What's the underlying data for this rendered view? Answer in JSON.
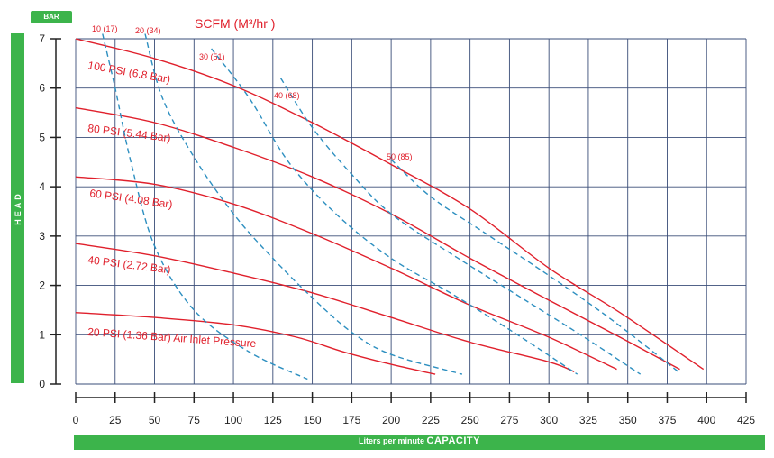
{
  "y_unit_badge": "BAR",
  "y_axis_label": "HEAD",
  "x_axis_label_prefix": "Liters per minute",
  "x_axis_label_strong": "CAPACITY",
  "airflow_title": "SCFM (M³/hr )",
  "colors": {
    "grid": "#3a4d78",
    "pressure": "#e0202c",
    "airflow": "#2d8fc0",
    "accent": "#3cb44b"
  },
  "chart_data": {
    "type": "line",
    "xlim": [
      0,
      425
    ],
    "ylim": [
      0,
      7
    ],
    "x_ticks": [
      0,
      25,
      50,
      75,
      100,
      125,
      150,
      175,
      200,
      225,
      250,
      275,
      300,
      325,
      350,
      375,
      400,
      425
    ],
    "y_ticks": [
      0,
      1,
      2,
      3,
      4,
      5,
      6,
      7
    ],
    "grid": true,
    "series": [
      {
        "name": "100 PSI (6.8 Bar)",
        "style": "solid",
        "color": "#e0202c",
        "points": [
          [
            0,
            7.0
          ],
          [
            50,
            6.6
          ],
          [
            100,
            6.05
          ],
          [
            150,
            5.3
          ],
          [
            200,
            4.45
          ],
          [
            250,
            3.55
          ],
          [
            300,
            2.35
          ],
          [
            345,
            1.45
          ],
          [
            398,
            0.3
          ]
        ]
      },
      {
        "name": "80 PSI (5.44 Bar)",
        "style": "solid",
        "color": "#e0202c",
        "points": [
          [
            0,
            5.6
          ],
          [
            50,
            5.3
          ],
          [
            100,
            4.8
          ],
          [
            150,
            4.2
          ],
          [
            200,
            3.45
          ],
          [
            250,
            2.55
          ],
          [
            300,
            1.7
          ],
          [
            345,
            0.95
          ],
          [
            383,
            0.3
          ]
        ]
      },
      {
        "name": "60 PSI (4.08 Bar)",
        "style": "solid",
        "color": "#e0202c",
        "points": [
          [
            0,
            4.2
          ],
          [
            50,
            4.05
          ],
          [
            100,
            3.65
          ],
          [
            150,
            3.05
          ],
          [
            200,
            2.35
          ],
          [
            250,
            1.6
          ],
          [
            300,
            0.95
          ],
          [
            343,
            0.3
          ]
        ]
      },
      {
        "name": "40 PSI (2.72 Bar)",
        "style": "solid",
        "color": "#e0202c",
        "points": [
          [
            0,
            2.85
          ],
          [
            50,
            2.6
          ],
          [
            100,
            2.25
          ],
          [
            150,
            1.85
          ],
          [
            200,
            1.35
          ],
          [
            250,
            0.85
          ],
          [
            300,
            0.45
          ],
          [
            316,
            0.25
          ]
        ]
      },
      {
        "name": "20 PSI (1.36 Bar) Air Inlet Pressure",
        "style": "solid",
        "color": "#e0202c",
        "points": [
          [
            0,
            1.45
          ],
          [
            50,
            1.35
          ],
          [
            100,
            1.2
          ],
          [
            140,
            0.95
          ],
          [
            170,
            0.65
          ],
          [
            200,
            0.4
          ],
          [
            228,
            0.2
          ]
        ]
      },
      {
        "name": "10 (17)",
        "style": "dashed",
        "color": "#2d8fc0",
        "points": [
          [
            17,
            7.1
          ],
          [
            25,
            6.0
          ],
          [
            35,
            4.5
          ],
          [
            50,
            2.8
          ],
          [
            75,
            1.5
          ],
          [
            110,
            0.65
          ],
          [
            147,
            0.1
          ]
        ]
      },
      {
        "name": "20 (34)",
        "style": "dashed",
        "color": "#2d8fc0",
        "points": [
          [
            44,
            7.1
          ],
          [
            55,
            5.8
          ],
          [
            75,
            4.6
          ],
          [
            100,
            3.45
          ],
          [
            125,
            2.55
          ],
          [
            150,
            1.75
          ],
          [
            175,
            1.05
          ],
          [
            200,
            0.6
          ],
          [
            245,
            0.2
          ]
        ]
      },
      {
        "name": "30 (51)",
        "style": "dashed",
        "color": "#2d8fc0",
        "points": [
          [
            86,
            6.8
          ],
          [
            110,
            5.8
          ],
          [
            135,
            4.5
          ],
          [
            165,
            3.45
          ],
          [
            200,
            2.55
          ],
          [
            240,
            1.8
          ],
          [
            280,
            1.0
          ],
          [
            318,
            0.2
          ]
        ]
      },
      {
        "name": "40 (68)",
        "style": "dashed",
        "color": "#2d8fc0",
        "points": [
          [
            130,
            6.2
          ],
          [
            150,
            5.2
          ],
          [
            175,
            4.25
          ],
          [
            200,
            3.45
          ],
          [
            240,
            2.6
          ],
          [
            280,
            1.8
          ],
          [
            320,
            1.0
          ],
          [
            358,
            0.2
          ]
        ]
      },
      {
        "name": "50 (85)",
        "style": "dashed",
        "color": "#2d8fc0",
        "points": [
          [
            200,
            4.55
          ],
          [
            225,
            3.8
          ],
          [
            260,
            3.05
          ],
          [
            300,
            2.2
          ],
          [
            340,
            1.3
          ],
          [
            382,
            0.25
          ]
        ]
      }
    ]
  }
}
